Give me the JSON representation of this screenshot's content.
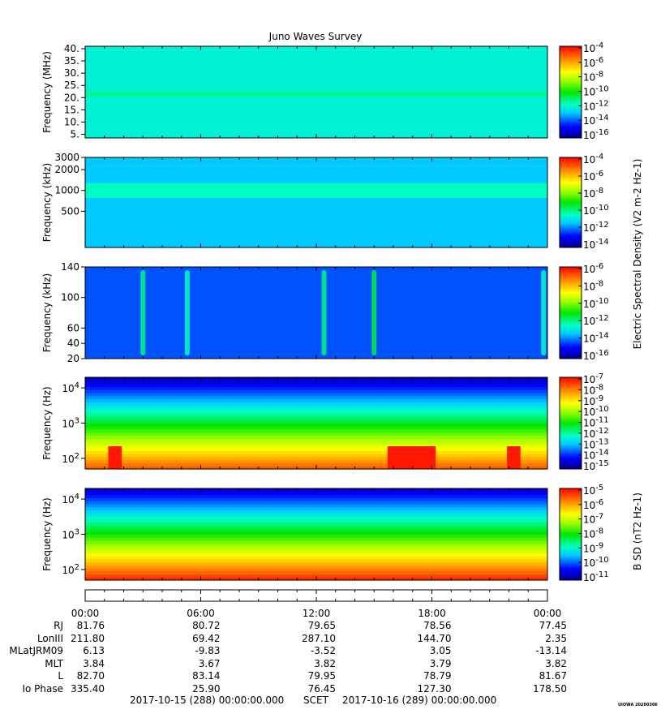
{
  "chart_data": {
    "type": "heatmap",
    "title": "Juno Waves Survey",
    "time_range": [
      "2017-10-15 00:00",
      "2017-10-16 00:00"
    ],
    "time_ticks": [
      "00:00",
      "06:00",
      "12:00",
      "18:00",
      "00:00"
    ],
    "panels": [
      {
        "id": "hfr-high",
        "ylabel": "Frequency (MHz)",
        "ylim": [
          3.5,
          41
        ],
        "y_ticks": [
          "40.",
          "35.",
          "30.",
          "25.",
          "20.",
          "15.",
          "10.",
          "5."
        ],
        "colorbar_ticks": [
          "10-4",
          "10-6",
          "10-8",
          "10-10",
          "10-12",
          "10-14",
          "10-16"
        ],
        "colorbar_range": [
          -17,
          -4
        ],
        "background_level": -12.6,
        "bands": [
          {
            "f_lo": 20.5,
            "f_hi": 22.5,
            "level": -11.8
          }
        ]
      },
      {
        "id": "hfr-low",
        "ylabel": "Frequency (kHz)",
        "ylim": [
          150,
          3000
        ],
        "y_scale": "log",
        "y_ticks": [
          "3000",
          "2000",
          "1000",
          "500"
        ],
        "colorbar_ticks": [
          "10-4",
          "10-6",
          "10-8",
          "10-10",
          "10-12",
          "10-14"
        ],
        "colorbar_range": [
          -15,
          -4
        ],
        "background_level": -12.0,
        "bands": [
          {
            "f_lo": 780,
            "f_hi": 1280,
            "level": -11.0
          }
        ]
      },
      {
        "id": "lfr-high",
        "ylabel": "Frequency (kHz)",
        "ylim": [
          20,
          140
        ],
        "y_ticks": [
          "140",
          "100",
          "60",
          "40",
          "20"
        ],
        "colorbar_ticks": [
          "10-6",
          "10-8",
          "10-10",
          "10-12",
          "10-14",
          "10-16"
        ],
        "colorbar_range": [
          -17,
          -6
        ],
        "background_level": -15.0,
        "bursts": [
          {
            "t_hour": 3.0,
            "level": -12.5
          },
          {
            "t_hour": 5.3,
            "level": -13.0
          },
          {
            "t_hour": 12.4,
            "level": -12.5
          },
          {
            "t_hour": 15.0,
            "level": -12.0
          },
          {
            "t_hour": 23.8,
            "level": -13.0
          }
        ]
      },
      {
        "id": "lfr-low",
        "ylabel": "Frequency (Hz)",
        "ylim": [
          50,
          20000
        ],
        "y_scale": "log",
        "y_ticks": [
          "10^4",
          "10^3",
          "10^2"
        ],
        "colorbar_ticks": [
          "10-7",
          "10-8",
          "10-9",
          "10-10",
          "10-11",
          "10-12",
          "10-13",
          "10-14",
          "10-15"
        ],
        "colorbar_range": [
          -15,
          -7
        ],
        "background_level": -11.0,
        "hot_intervals": [
          {
            "t_hour_start": 1.2,
            "t_hour_end": 1.9,
            "level": -7.2
          },
          {
            "t_hour_start": 15.7,
            "t_hour_end": 18.2,
            "level": -7.2
          },
          {
            "t_hour_start": 21.9,
            "t_hour_end": 22.6,
            "level": -7.2
          }
        ]
      },
      {
        "id": "magnetic",
        "ylabel": "Frequency (Hz)",
        "ylim": [
          50,
          20000
        ],
        "y_scale": "log",
        "y_ticks": [
          "10^4",
          "10^3",
          "10^2"
        ],
        "colorbar_ticks": [
          "10-5",
          "10-6",
          "10-7",
          "10-8",
          "10-9",
          "10-10",
          "10-11"
        ],
        "colorbar_range": [
          -11,
          -4.5
        ],
        "background_level": -8.0
      }
    ],
    "colorbar_labels": [
      "Electric Spectral Density (V2 m-2 Hz-1)",
      "B SD (nT2 Hz-1)"
    ]
  },
  "ephemeris": {
    "rows": [
      {
        "label": "RJ",
        "values": [
          "81.76",
          "80.72",
          "79.65",
          "78.56",
          "77.45"
        ]
      },
      {
        "label": "LonIII",
        "values": [
          "211.80",
          "69.42",
          "287.10",
          "144.70",
          "2.35"
        ]
      },
      {
        "label": "MLatJRM09",
        "values": [
          "6.13",
          "-9.83",
          "-3.52",
          "3.05",
          "-13.14"
        ]
      },
      {
        "label": "MLT",
        "values": [
          "3.84",
          "3.67",
          "3.82",
          "3.79",
          "3.82"
        ]
      },
      {
        "label": "L",
        "values": [
          "82.70",
          "83.14",
          "79.95",
          "78.79",
          "81.67"
        ]
      },
      {
        "label": "Io Phase",
        "values": [
          "335.40",
          "25.90",
          "76.45",
          "127.30",
          "178.50"
        ]
      }
    ]
  },
  "footer": {
    "start": "2017-10-15 (288) 00:00:00.000",
    "scet": "SCET",
    "end": "2017-10-16 (289) 00:00:00.000",
    "stamp": "UIOWA 20200306"
  }
}
